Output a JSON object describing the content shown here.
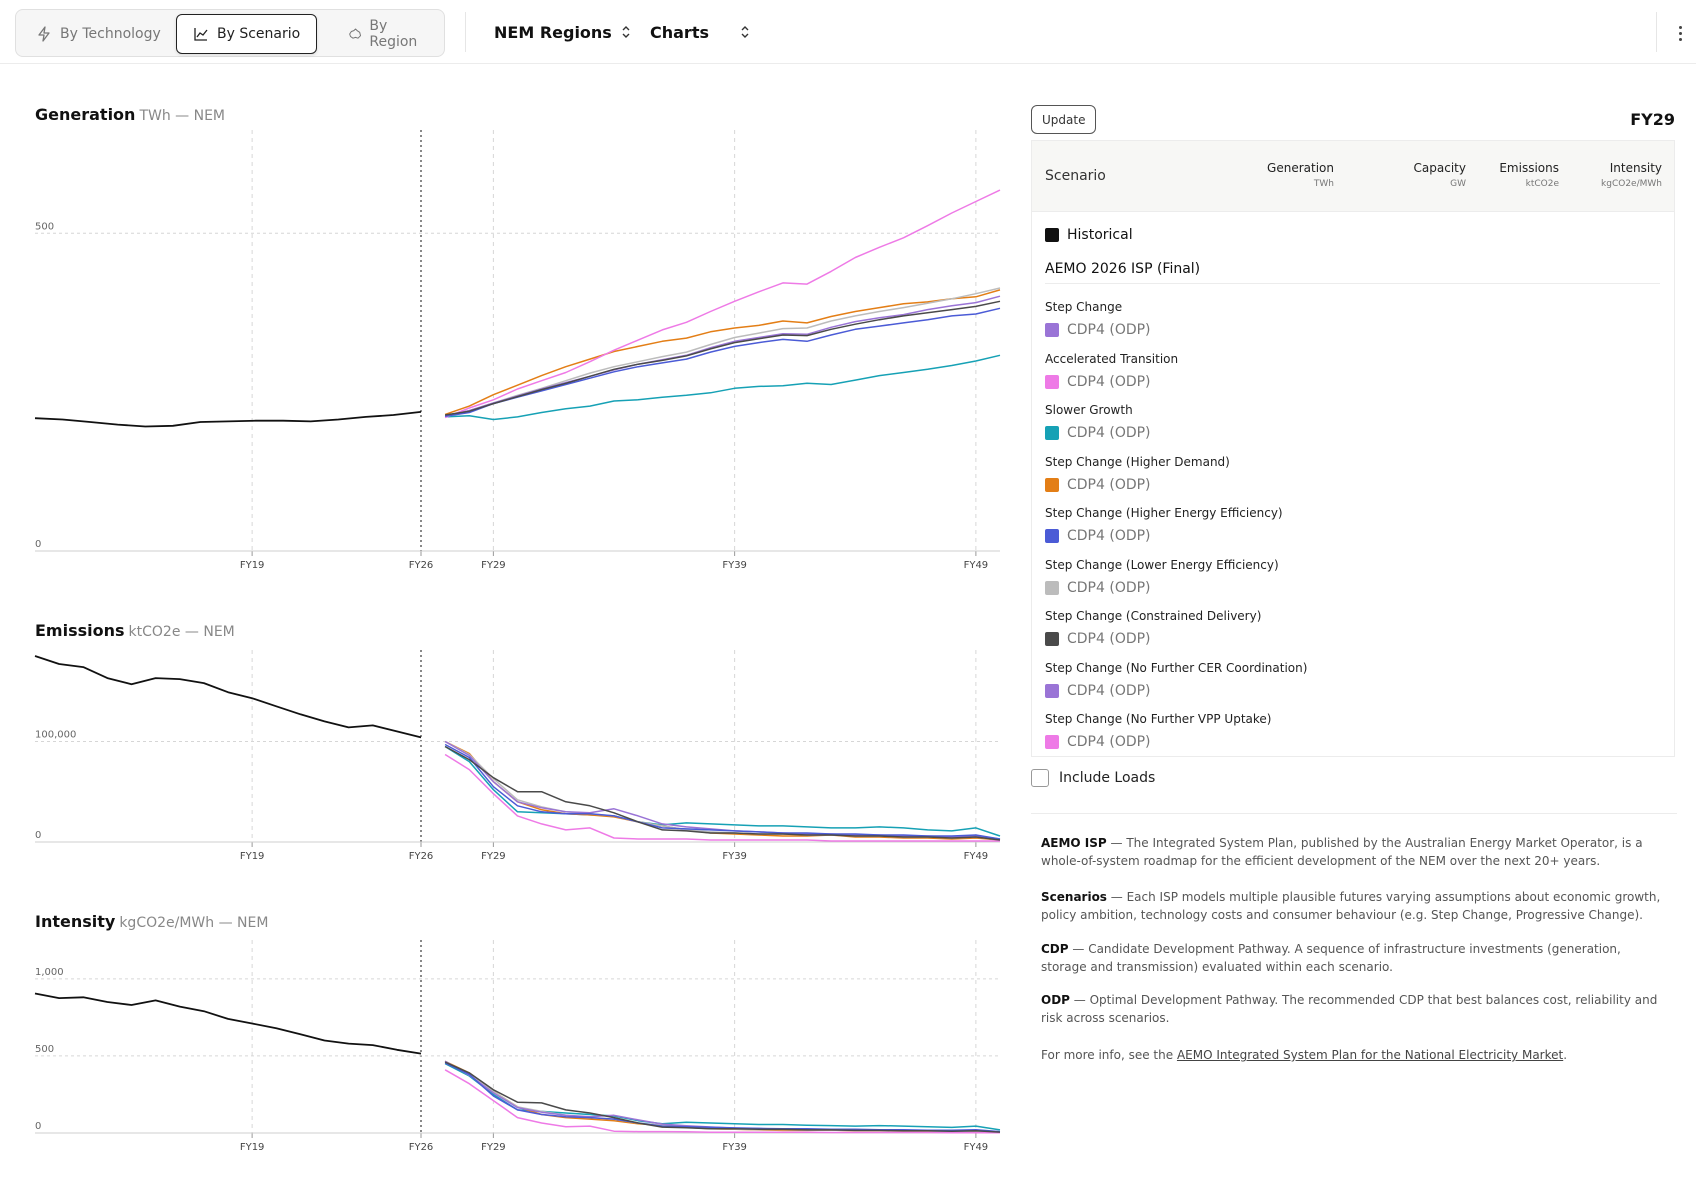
{
  "tabs": [
    {
      "label": "By Technology",
      "icon": "bolt-icon"
    },
    {
      "label": "By Scenario",
      "icon": "line-chart-icon",
      "active": true
    },
    {
      "label": "By Region",
      "icon": "australia-map-icon"
    }
  ],
  "selectors": {
    "region": "NEM Regions",
    "view": "Charts"
  },
  "charts": {
    "generation": {
      "title": "Generation",
      "unit": "TWh — NEM"
    },
    "emissions": {
      "title": "Emissions",
      "unit": "ktCO2e — NEM"
    },
    "intensity": {
      "title": "Intensity",
      "unit": "kgCO2e/MWh — NEM"
    }
  },
  "panel": {
    "update_label": "Update",
    "selected_year": "FY29",
    "headers": {
      "scenario": "Scenario",
      "generation": "Generation",
      "generation_unit": "TWh",
      "capacity": "Capacity",
      "capacity_unit": "GW",
      "emissions": "Emissions",
      "emissions_unit": "ktCO2e",
      "intensity": "Intensity",
      "intensity_unit": "kgCO2e/MWh"
    },
    "historical_label": "Historical",
    "group_label": "AEMO 2026 ISP (Final)",
    "scenarios": [
      {
        "name": "Step Change",
        "cdp": "CDP4 (ODP)",
        "color": "#9a74d6"
      },
      {
        "name": "Accelerated Transition",
        "cdp": "CDP4 (ODP)",
        "color": "#ee7ae6"
      },
      {
        "name": "Slower Growth",
        "cdp": "CDP4 (ODP)",
        "color": "#16a1b5"
      },
      {
        "name": "Step Change (Higher Demand)",
        "cdp": "CDP4 (ODP)",
        "color": "#e37e16"
      },
      {
        "name": "Step Change (Higher Energy Efficiency)",
        "cdp": "CDP4 (ODP)",
        "color": "#4b5bd6"
      },
      {
        "name": "Step Change (Lower Energy Efficiency)",
        "cdp": "CDP4 (ODP)",
        "color": "#bcbcbc"
      },
      {
        "name": "Step Change (Constrained Delivery)",
        "cdp": "CDP4 (ODP)",
        "color": "#4a4a4a"
      },
      {
        "name": "Step Change (No Further CER Coordination)",
        "cdp": "CDP4 (ODP)",
        "color": "#9a74d6"
      },
      {
        "name": "Step Change (No Further VPP Uptake)",
        "cdp": "CDP4 (ODP)",
        "color": "#ee7ae6"
      }
    ],
    "include_loads_label": "Include Loads"
  },
  "notes": [
    {
      "term": "AEMO ISP",
      "text": " — The Integrated System Plan, published by the Australian Energy Market Operator, is a whole-of-system roadmap for the efficient development of the NEM over the next 20+ years."
    },
    {
      "term": "Scenarios",
      "text": " — Each ISP models multiple plausible futures varying assumptions about economic growth, policy ambition, technology costs and consumer behaviour (e.g. Step Change, Progressive Change)."
    },
    {
      "term": "CDP",
      "text": " — Candidate Development Pathway. A sequence of infrastructure investments (generation, storage and transmission) evaluated within each scenario."
    },
    {
      "term": "ODP",
      "text": " — Optimal Development Pathway. The recommended CDP that best balances cost, reliability and risk across scenarios."
    }
  ],
  "more_info": {
    "prefix": "For more info, see the ",
    "link": "AEMO Integrated System Plan for the National Electricity Market",
    "suffix": "."
  },
  "chart_data": [
    {
      "type": "line",
      "title": "Generation",
      "ylabel": "TWh — NEM",
      "x_ticks": [
        "FY19",
        "FY26",
        "FY29",
        "FY39",
        "FY49"
      ],
      "y_ticks": [
        {
          "v": 0,
          "label": "0"
        },
        {
          "v": 500,
          "label": "500"
        }
      ],
      "ylim": [
        0,
        650
      ],
      "historical": {
        "name": "Historical",
        "color": "#111111",
        "start": 2010,
        "values": [
          209,
          207,
          203,
          199,
          196,
          197,
          203,
          204,
          205,
          205,
          204,
          207,
          211,
          214,
          219
        ]
      },
      "projections": {
        "start": 2027,
        "series": [
          {
            "color": "#16a1b5",
            "values": [
              211,
              213,
              207,
              211,
              218,
              224,
              228,
              236,
              238,
              242,
              245,
              249,
              256,
              259,
              260,
              264,
              262,
              269,
              276,
              281,
              286,
              292,
              299,
              308
            ]
          },
          {
            "color": "#e37e16",
            "values": [
              215,
              228,
              246,
              261,
              276,
              290,
              302,
              314,
              322,
              330,
              335,
              345,
              351,
              355,
              362,
              359,
              369,
              377,
              383,
              389,
              392,
              397,
              400,
              411
            ]
          },
          {
            "color": "#bcbcbc",
            "values": [
              213,
              221,
              233,
              245,
              256,
              268,
              280,
              290,
              298,
              306,
              313,
              325,
              336,
              343,
              350,
              351,
              362,
              370,
              377,
              383,
              390,
              397,
              405,
              414
            ]
          },
          {
            "color": "#9a74d6",
            "values": [
              213,
              221,
              233,
              244,
              255,
              265,
              275,
              285,
              294,
              301,
              308,
              320,
              330,
              336,
              342,
              341,
              352,
              361,
              367,
              372,
              380,
              386,
              391,
              401
            ]
          },
          {
            "color": "#ee7ae6",
            "values": [
              210,
              225,
              238,
              255,
              268,
              281,
              298,
              316,
              332,
              348,
              360,
              377,
              393,
              408,
              422,
              420,
              440,
              462,
              478,
              493,
              512,
              532,
              550,
              568
            ]
          },
          {
            "color": "#4b5bd6",
            "values": [
              212,
              218,
              232,
              242,
              252,
              262,
              272,
              282,
              290,
              296,
              302,
              313,
              322,
              328,
              333,
              330,
              340,
              349,
              354,
              359,
              364,
              370,
              373,
              382
            ]
          },
          {
            "color": "#4a4a4a",
            "values": [
              214,
              220,
              232,
              243,
              254,
              264,
              275,
              286,
              294,
              300,
              307,
              318,
              328,
              334,
              340,
              339,
              349,
              357,
              364,
              370,
              375,
              380,
              385,
              393
            ]
          }
        ]
      }
    },
    {
      "type": "line",
      "title": "Emissions",
      "ylabel": "ktCO2e — NEM",
      "x_ticks": [
        "FY19",
        "FY26",
        "FY29",
        "FY39",
        "FY49"
      ],
      "y_ticks": [
        {
          "v": 0,
          "label": "0"
        },
        {
          "v": 100000,
          "label": "100,000"
        }
      ],
      "ylim": [
        0,
        185000
      ],
      "historical": {
        "name": "Historical",
        "color": "#111111",
        "start": 2010,
        "values": [
          185000,
          177000,
          174000,
          163000,
          157000,
          163000,
          162000,
          158000,
          149000,
          143000,
          135000,
          127000,
          120000,
          114000,
          116000,
          110000,
          104000
        ]
      },
      "projections": {
        "start": 2027,
        "series": [
          {
            "color": "#16a1b5",
            "values": [
              95000,
              80000,
              52000,
              30000,
              29000,
              28000,
              27000,
              26000,
              20000,
              17000,
              19000,
              18000,
              17000,
              16000,
              16000,
              15000,
              14000,
              14000,
              15000,
              14000,
              12000,
              11000,
              14000,
              6000
            ]
          },
          {
            "color": "#e37e16",
            "values": [
              100000,
              88000,
              60000,
              40000,
              32000,
              28000,
              27000,
              25000,
              20000,
              16000,
              12000,
              9000,
              8000,
              7000,
              6000,
              6000,
              7000,
              5000,
              5000,
              4000,
              4000,
              3000,
              4000,
              2000
            ]
          },
          {
            "color": "#bcbcbc",
            "values": [
              100000,
              87000,
              63000,
              42000,
              35000,
              30000,
              28000,
              26000,
              20000,
              16000,
              12000,
              10000,
              9000,
              8000,
              8000,
              7000,
              7000,
              6000,
              6000,
              5000,
              5000,
              4000,
              5000,
              2000
            ]
          },
          {
            "color": "#9a74d6",
            "values": [
              100000,
              86000,
              60000,
              40000,
              34000,
              30000,
              29000,
              33000,
              26000,
              18000,
              15000,
              13000,
              11000,
              10000,
              9000,
              8000,
              8000,
              7000,
              7000,
              6000,
              6000,
              5000,
              6000,
              3000
            ]
          },
          {
            "color": "#ee7ae6",
            "values": [
              87000,
              72000,
              48000,
              26000,
              18000,
              12000,
              14000,
              4000,
              3000,
              3000,
              3000,
              2000,
              2000,
              2000,
              2000,
              2000,
              1000,
              1000,
              1000,
              1000,
              1000,
              1000,
              1000,
              1000
            ]
          },
          {
            "color": "#4b5bd6",
            "values": [
              97000,
              84000,
              55000,
              36000,
              30000,
              28000,
              28000,
              26000,
              20000,
              14000,
              13000,
              12000,
              11000,
              10000,
              9000,
              9000,
              8000,
              8000,
              7000,
              7000,
              6000,
              6000,
              7000,
              3000
            ]
          },
          {
            "color": "#4a4a4a",
            "values": [
              95000,
              82000,
              64000,
              50000,
              50000,
              40000,
              36000,
              29000,
              20000,
              12000,
              11000,
              9000,
              9000,
              8000,
              8000,
              7000,
              7000,
              6000,
              6000,
              5000,
              5000,
              4000,
              5000,
              2000
            ]
          }
        ]
      }
    },
    {
      "type": "line",
      "title": "Intensity",
      "ylabel": "kgCO2e/MWh — NEM",
      "x_ticks": [
        "FY19",
        "FY26",
        "FY29",
        "FY39",
        "FY49"
      ],
      "y_ticks": [
        {
          "v": 0,
          "label": "0"
        },
        {
          "v": 500,
          "label": "500"
        },
        {
          "v": 1000,
          "label": "1,000"
        }
      ],
      "ylim": [
        0,
        1200
      ],
      "historical": {
        "name": "Historical",
        "color": "#111111",
        "start": 2010,
        "values": [
          905,
          875,
          880,
          850,
          830,
          860,
          820,
          790,
          740,
          710,
          680,
          640,
          600,
          580,
          570,
          540,
          515
        ]
      },
      "projections": {
        "start": 2027,
        "series": [
          {
            "color": "#16a1b5",
            "values": [
              450,
              370,
              250,
              150,
              140,
              130,
              120,
              110,
              80,
              60,
              70,
              65,
              60,
              55,
              55,
              50,
              48,
              45,
              48,
              45,
              40,
              36,
              45,
              20
            ]
          },
          {
            "color": "#e37e16",
            "values": [
              465,
              390,
              270,
              170,
              120,
              100,
              90,
              80,
              60,
              50,
              36,
              27,
              24,
              20,
              17,
              17,
              19,
              14,
              14,
              11,
              11,
              8,
              11,
              5
            ]
          },
          {
            "color": "#bcbcbc",
            "values": [
              465,
              380,
              270,
              170,
              140,
              115,
              100,
              90,
              65,
              50,
              37,
              29,
              25,
              22,
              22,
              19,
              19,
              16,
              16,
              13,
              13,
              10,
              13,
              5
            ]
          },
          {
            "color": "#9a74d6",
            "values": [
              465,
              375,
              260,
              165,
              135,
              115,
              105,
              115,
              85,
              58,
              47,
              39,
              32,
              29,
              25,
              23,
              22,
              19,
              18,
              16,
              15,
              13,
              15,
              7
            ]
          },
          {
            "color": "#ee7ae6",
            "values": [
              410,
              320,
              210,
              100,
              65,
              40,
              45,
              12,
              9,
              9,
              8,
              5,
              5,
              5,
              5,
              5,
              3,
              3,
              3,
              3,
              3,
              2,
              2,
              2
            ]
          },
          {
            "color": "#4b5bd6",
            "values": [
              455,
              380,
              240,
              150,
              120,
              105,
              100,
              90,
              65,
              45,
              41,
              37,
              33,
              30,
              27,
              27,
              24,
              24,
              21,
              21,
              18,
              18,
              21,
              9
            ]
          },
          {
            "color": "#4a4a4a",
            "values": [
              460,
              390,
              280,
              200,
              195,
              150,
              130,
              100,
              65,
              38,
              34,
              27,
              27,
              24,
              24,
              20,
              20,
              17,
              17,
              14,
              14,
              11,
              14,
              6
            ]
          }
        ]
      }
    }
  ]
}
